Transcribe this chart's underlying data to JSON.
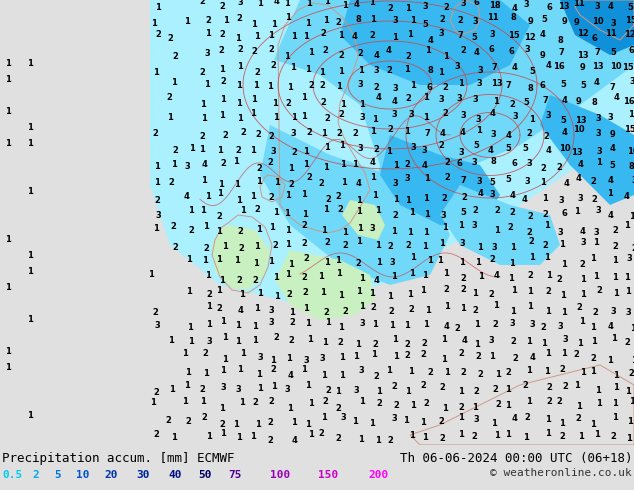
{
  "title_left": "Precipitation accum. [mm] ECMWF",
  "title_right": "Th 06-06-2024 00:00 UTC (06+18)",
  "copyright": "© weatheronline.co.uk",
  "legend_values": [
    "0.5",
    "2",
    "5",
    "10",
    "20",
    "30",
    "40",
    "50",
    "75",
    "100",
    "150",
    "200"
  ],
  "legend_colors": [
    "#00d4ff",
    "#00aaff",
    "#0080ff",
    "#0055dd",
    "#0033bb",
    "#002299",
    "#001177",
    "#000055",
    "#440088",
    "#8800aa",
    "#cc00cc",
    "#ff00ff"
  ],
  "bg_color": "#e0e0e0",
  "bottom_bar_color": "#d8d8d8",
  "map_ocean_color": "#e8e8e8",
  "precip_colors": {
    "lightest": "#aaf0ff",
    "light": "#70d8f8",
    "medium": "#38b8f0",
    "dark": "#1090d8",
    "darkest": "#0060b0",
    "green_light": "#c8f0c0",
    "green": "#90e070"
  },
  "font_size_title": 9,
  "font_size_legend": 8,
  "font_size_numbers": 6,
  "contour_color": "#cc4444"
}
